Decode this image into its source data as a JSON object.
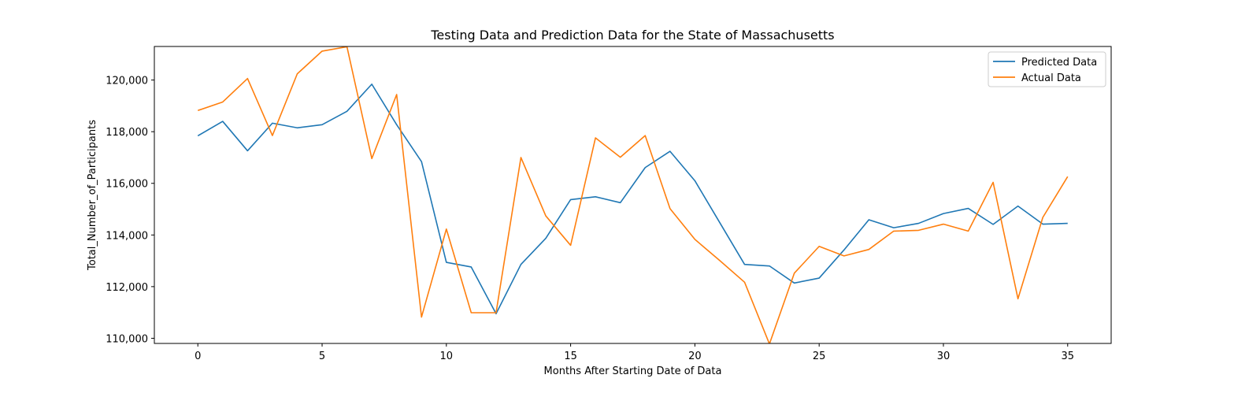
{
  "chart_data": {
    "type": "line",
    "title": "Testing Data and Prediction Data for the State of Massachusetts",
    "xlabel": "Months After Starting Date of Data",
    "ylabel": "Total_Number_of_Participants",
    "xlim": [
      -1.75,
      36.75
    ],
    "ylim": [
      109800,
      121300
    ],
    "xticks": [
      0,
      5,
      10,
      15,
      20,
      25,
      30,
      35
    ],
    "yticks": [
      110000,
      112000,
      114000,
      116000,
      118000,
      120000
    ],
    "ytick_labels": [
      "110,000",
      "112,000",
      "114,000",
      "116,000",
      "118,000",
      "120,000"
    ],
    "grid": false,
    "legend": "top-right",
    "x": [
      0,
      1,
      2,
      3,
      4,
      5,
      6,
      7,
      8,
      9,
      10,
      11,
      12,
      13,
      14,
      15,
      16,
      17,
      18,
      19,
      20,
      21,
      22,
      23,
      24,
      25,
      26,
      27,
      28,
      29,
      30,
      31,
      32,
      33,
      34,
      35
    ],
    "series": [
      {
        "name": "Predicted Data",
        "color": "#1f77b4",
        "values": [
          117840,
          118400,
          117260,
          118330,
          118150,
          118270,
          118790,
          119840,
          118270,
          116840,
          112940,
          112760,
          110950,
          112860,
          113870,
          115370,
          115480,
          115250,
          116610,
          117240,
          116100,
          114480,
          112860,
          112800,
          112140,
          112330,
          113420,
          114590,
          114280,
          114450,
          114830,
          115030,
          114410,
          115120,
          114420,
          114450
        ]
      },
      {
        "name": "Actual Data",
        "color": "#ff7f0e",
        "values": [
          118820,
          119150,
          120060,
          117850,
          120240,
          121120,
          121290,
          116960,
          119440,
          110820,
          114230,
          110990,
          110990,
          117000,
          114740,
          113600,
          117760,
          117010,
          117850,
          115020,
          113830,
          113010,
          112170,
          109780,
          112520,
          113560,
          113190,
          113440,
          114150,
          114180,
          114420,
          114150,
          116040,
          111530,
          114680,
          116260
        ]
      }
    ]
  }
}
